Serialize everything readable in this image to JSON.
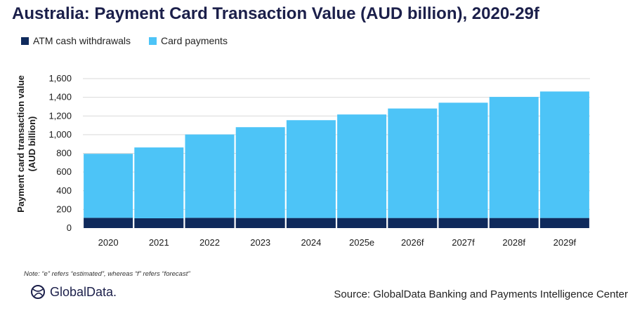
{
  "title": "Australia: Payment Card Transaction Value (AUD billion), 2020-29f",
  "note": "Note: “e” refers “estimated”, whereas “f” refers “forecast”",
  "source": "Source: GlobalData Banking and Payments Intelligence Center",
  "logo": {
    "text": "GlobalData."
  },
  "colors": {
    "atm": "#0f2a5c",
    "card": "#4dc4f7",
    "grid": "#d9d9d9",
    "title": "#1b1f4a"
  },
  "chart_data": {
    "type": "bar",
    "stacked": true,
    "title": "Australia: Payment Card Transaction Value (AUD billion), 2020-29f",
    "ylabel_line1": "Payment card transaction value",
    "ylabel_line2": "(AUD billion)",
    "xlabel": "",
    "ylim": [
      0,
      1600
    ],
    "yticks": [
      0,
      200,
      400,
      600,
      800,
      1000,
      1200,
      1400,
      1600
    ],
    "ytick_labels": [
      "0",
      "200",
      "400",
      "600",
      "800",
      "1,000",
      "1,200",
      "1,400",
      "1,600"
    ],
    "grid": true,
    "legend": "top-left",
    "categories": [
      "2020",
      "2021",
      "2022",
      "2023",
      "2024",
      "2025e",
      "2026f",
      "2027f",
      "2028f",
      "2029f"
    ],
    "series": [
      {
        "name": "ATM cash withdrawals",
        "values": [
          110,
          105,
          110,
          108,
          108,
          108,
          108,
          108,
          108,
          108
        ]
      },
      {
        "name": "Card payments",
        "values": [
          685,
          758,
          892,
          972,
          1047,
          1108,
          1172,
          1234,
          1296,
          1354
        ]
      }
    ]
  }
}
